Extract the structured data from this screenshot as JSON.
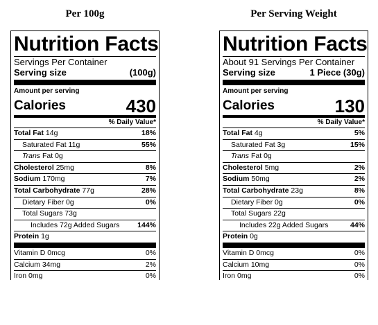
{
  "headings": {
    "left": "Per 100g",
    "right": "Per Serving Weight"
  },
  "labels": [
    {
      "title": "Nutrition Facts",
      "servings": "Servings Per Container",
      "serving_size_label": "Serving size",
      "serving_size_value": "(100g)",
      "amount_per_serving": "Amount per serving",
      "calories_label": "Calories",
      "calories_value": "430",
      "dv_header": "% Daily Value*",
      "total_fat": {
        "label": "Total Fat",
        "amount": "14g",
        "dv": "18%"
      },
      "saturated_fat": {
        "label": "Saturated Fat 11g",
        "dv": "55%"
      },
      "trans_fat": {
        "label": "Trans",
        "rest": "Fat 0g"
      },
      "cholesterol": {
        "label": "Cholesterol",
        "amount": "25mg",
        "dv": "8%"
      },
      "sodium": {
        "label": "Sodium",
        "amount": "170mg",
        "dv": "7%"
      },
      "total_carb": {
        "label": "Total Carbohydrate",
        "amount": "77g",
        "dv": "28%"
      },
      "fiber": {
        "label": "Dietary Fiber 0g",
        "dv": "0%"
      },
      "sugars": {
        "label": "Total Sugars 73g"
      },
      "added_sugars": {
        "label": "Includes 72g Added Sugars",
        "dv": "144%"
      },
      "protein": {
        "label": "Protein",
        "amount": "1g"
      },
      "vitamin_d": {
        "label": "Vitamin D 0mcg",
        "dv": "0%"
      },
      "calcium": {
        "label": "Calcium 34mg",
        "dv": "2%"
      },
      "iron": {
        "label": "Iron 0mg",
        "dv": "0%"
      }
    },
    {
      "title": "Nutrition Facts",
      "servings": "About 91 Servings Per Container",
      "serving_size_label": "Serving size",
      "serving_size_value": "1 Piece (30g)",
      "amount_per_serving": "Amount per serving",
      "calories_label": "Calories",
      "calories_value": "130",
      "dv_header": "% Daily Value*",
      "total_fat": {
        "label": "Total Fat",
        "amount": "4g",
        "dv": "5%"
      },
      "saturated_fat": {
        "label": "Saturated Fat 3g",
        "dv": "15%"
      },
      "trans_fat": {
        "label": "Trans",
        "rest": "Fat 0g"
      },
      "cholesterol": {
        "label": "Cholesterol",
        "amount": "5mg",
        "dv": "2%"
      },
      "sodium": {
        "label": "Sodium",
        "amount": "50mg",
        "dv": "2%"
      },
      "total_carb": {
        "label": "Total Carbohydrate",
        "amount": "23g",
        "dv": "8%"
      },
      "fiber": {
        "label": "Dietary Fiber 0g",
        "dv": "0%"
      },
      "sugars": {
        "label": "Total Sugars 22g"
      },
      "added_sugars": {
        "label": "Includes 22g Added Sugars",
        "dv": "44%"
      },
      "protein": {
        "label": "Protein",
        "amount": "0g"
      },
      "vitamin_d": {
        "label": "Vitamin D 0mcg",
        "dv": "0%"
      },
      "calcium": {
        "label": "Calcium 10mg",
        "dv": "0%"
      },
      "iron": {
        "label": "Iron 0mg",
        "dv": "0%"
      }
    }
  ]
}
